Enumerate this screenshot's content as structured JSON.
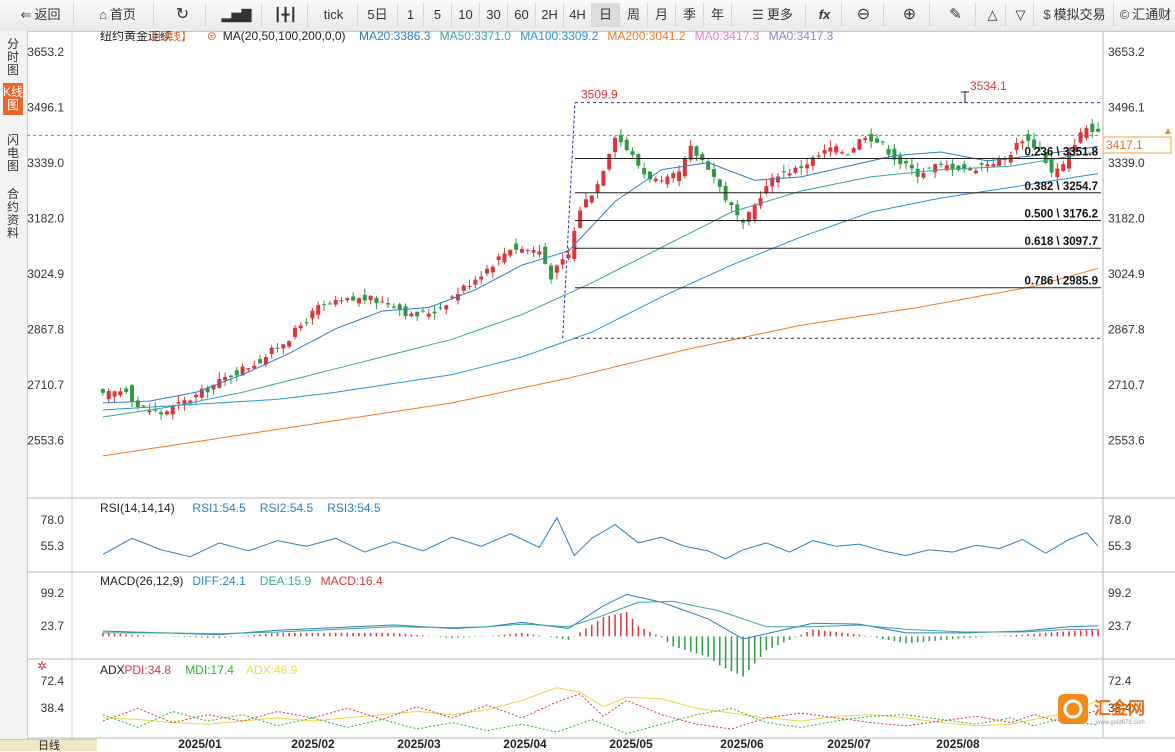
{
  "toolbar": {
    "back": "返回",
    "home": "首页",
    "periods": [
      "tick",
      "5日",
      "1",
      "5",
      "10",
      "30",
      "60",
      "2H",
      "4H",
      "日",
      "周",
      "月",
      "季",
      "年"
    ],
    "selected_period": "日",
    "more": "更多",
    "sim_trade": "模拟交易",
    "brand": "汇通财"
  },
  "sidebar": {
    "tabs": [
      "分时图",
      "K线图",
      "闪电图",
      "合约资料"
    ],
    "selected": "K线图",
    "bottom_tab": "日线"
  },
  "colors": {
    "up": "#d9363e",
    "down": "#2e9a44",
    "ma20": "#2d7fc4",
    "ma50": "#35a8a0",
    "ma100": "#2a94d9",
    "ma200": "#f07b2a",
    "ma_a": "#e77fc4",
    "ma_b": "#8c7fe0",
    "rsi": "#2d7fc4",
    "diff": "#2d7fc4",
    "dea": "#35a8a0",
    "pdi": "#d9363e",
    "mdi": "#2bb52b",
    "adx": "#e8d84a"
  },
  "chart_data": [
    {
      "type": "candlestick",
      "title": "纽约黄金连续",
      "period_tag": "【日线】",
      "ma_header": "MA(20,50,100,200,0,0)",
      "legend": [
        {
          "label": "MA20:3386.3",
          "key": "ma20"
        },
        {
          "label": "MA50:3371.0",
          "key": "ma50"
        },
        {
          "label": "MA100:3309.2",
          "key": "ma100"
        },
        {
          "label": "MA200:3041.2",
          "key": "ma200"
        },
        {
          "label": "MA0:3417.3",
          "key": "ma_a"
        },
        {
          "label": "MA0:3417.3",
          "key": "ma_b"
        }
      ],
      "y_ticks": [
        "3653.2",
        "3496.1",
        "3339.0",
        "3182.0",
        "3024.9",
        "2867.8",
        "2710.7",
        "2553.6"
      ],
      "ylim": [
        2496.6,
        3686.0
      ],
      "x_ticks": [
        "2025/01",
        "2025/02",
        "2025/03",
        "2025/04",
        "2025/05",
        "2025/06",
        "2025/07",
        "2025/08"
      ],
      "last_price": "3417.1",
      "annotations": {
        "high1": "3509.9",
        "high2": "3534.1"
      },
      "fib_levels": [
        {
          "label": "0.236 \\ 3351.8",
          "value": 3351.8
        },
        {
          "label": "0.382 \\ 3254.7",
          "value": 3254.7
        },
        {
          "label": "0.500 \\ 3176.2",
          "value": 3176.2
        },
        {
          "label": "0.618 \\ 3097.7",
          "value": 3097.7
        },
        {
          "label": "0.786 \\ 2985.9",
          "value": 2985.9
        }
      ],
      "fib_extra": [
        3509.9,
        2843.0
      ],
      "current_line": 3417.1,
      "anchors": [
        [
          0,
          2680
        ],
        [
          4,
          2700
        ],
        [
          6,
          2650
        ],
        [
          10,
          2630
        ],
        [
          16,
          2680
        ],
        [
          22,
          2740
        ],
        [
          27,
          2780
        ],
        [
          32,
          2845
        ],
        [
          37,
          2930
        ],
        [
          42,
          2950
        ],
        [
          45,
          2955
        ],
        [
          50,
          2940
        ],
        [
          53,
          2905
        ],
        [
          57,
          2920
        ],
        [
          60,
          2960
        ],
        [
          63,
          3000
        ],
        [
          66,
          3040
        ],
        [
          70,
          3100
        ],
        [
          75,
          3090
        ],
        [
          77,
          3020
        ],
        [
          80,
          3080
        ],
        [
          82,
          3210
        ],
        [
          85,
          3280
        ],
        [
          88,
          3420
        ],
        [
          90,
          3380
        ],
        [
          93,
          3310
        ],
        [
          96,
          3280
        ],
        [
          99,
          3310
        ],
        [
          101,
          3380
        ],
        [
          104,
          3330
        ],
        [
          107,
          3240
        ],
        [
          110,
          3160
        ],
        [
          113,
          3250
        ],
        [
          116,
          3310
        ],
        [
          119,
          3320
        ],
        [
          122,
          3350
        ],
        [
          125,
          3380
        ],
        [
          128,
          3370
        ],
        [
          131,
          3420
        ],
        [
          134,
          3390
        ],
        [
          137,
          3340
        ],
        [
          140,
          3310
        ],
        [
          143,
          3330
        ],
        [
          146,
          3330
        ],
        [
          149,
          3320
        ],
        [
          152,
          3340
        ],
        [
          155,
          3350
        ],
        [
          158,
          3410
        ],
        [
          161,
          3380
        ],
        [
          163,
          3310
        ],
        [
          165,
          3330
        ],
        [
          167,
          3400
        ],
        [
          169,
          3440
        ],
        [
          171,
          3417
        ]
      ],
      "ma_lines": {
        "ma20": [
          [
            0,
            2660
          ],
          [
            8,
            2665
          ],
          [
            16,
            2690
          ],
          [
            24,
            2740
          ],
          [
            32,
            2800
          ],
          [
            40,
            2870
          ],
          [
            48,
            2920
          ],
          [
            56,
            2930
          ],
          [
            64,
            2980
          ],
          [
            72,
            3050
          ],
          [
            80,
            3090
          ],
          [
            88,
            3230
          ],
          [
            96,
            3320
          ],
          [
            104,
            3340
          ],
          [
            112,
            3290
          ],
          [
            120,
            3300
          ],
          [
            128,
            3330
          ],
          [
            136,
            3360
          ],
          [
            144,
            3370
          ],
          [
            152,
            3345
          ],
          [
            160,
            3360
          ],
          [
            171,
            3386
          ]
        ],
        "ma50": [
          [
            0,
            2620
          ],
          [
            12,
            2650
          ],
          [
            24,
            2690
          ],
          [
            36,
            2740
          ],
          [
            48,
            2790
          ],
          [
            60,
            2840
          ],
          [
            72,
            2910
          ],
          [
            84,
            3000
          ],
          [
            96,
            3100
          ],
          [
            108,
            3200
          ],
          [
            120,
            3260
          ],
          [
            132,
            3300
          ],
          [
            144,
            3320
          ],
          [
            156,
            3330
          ],
          [
            171,
            3371
          ]
        ],
        "ma100": [
          [
            0,
            2640
          ],
          [
            10,
            2650
          ],
          [
            20,
            2660
          ],
          [
            30,
            2670
          ],
          [
            40,
            2690
          ],
          [
            50,
            2715
          ],
          [
            60,
            2740
          ],
          [
            72,
            2790
          ],
          [
            84,
            2860
          ],
          [
            96,
            2960
          ],
          [
            108,
            3050
          ],
          [
            120,
            3130
          ],
          [
            132,
            3200
          ],
          [
            144,
            3240
          ],
          [
            156,
            3270
          ],
          [
            171,
            3309
          ]
        ],
        "ma200": [
          [
            0,
            2510
          ],
          [
            20,
            2560
          ],
          [
            40,
            2610
          ],
          [
            60,
            2660
          ],
          [
            80,
            2730
          ],
          [
            100,
            2810
          ],
          [
            120,
            2880
          ],
          [
            140,
            2930
          ],
          [
            160,
            2990
          ],
          [
            171,
            3041
          ]
        ]
      }
    },
    {
      "type": "line",
      "title": "RSI(14,14,14)",
      "legend": [
        {
          "label": "RSI1:54.5",
          "key": "rsi"
        },
        {
          "label": "RSI2:54.5",
          "key": "rsi"
        },
        {
          "label": "RSI3:54.5",
          "key": "rsi"
        }
      ],
      "y_ticks": [
        "78.0",
        "55.3"
      ],
      "ylim": [
        37,
        88
      ],
      "anchors": [
        [
          0,
          48
        ],
        [
          5,
          62
        ],
        [
          10,
          52
        ],
        [
          15,
          46
        ],
        [
          20,
          58
        ],
        [
          25,
          51
        ],
        [
          30,
          60
        ],
        [
          35,
          55
        ],
        [
          40,
          62
        ],
        [
          45,
          50
        ],
        [
          50,
          59
        ],
        [
          55,
          51
        ],
        [
          60,
          63
        ],
        [
          65,
          55
        ],
        [
          70,
          66
        ],
        [
          75,
          54
        ],
        [
          78,
          80
        ],
        [
          81,
          47
        ],
        [
          84,
          62
        ],
        [
          88,
          74
        ],
        [
          92,
          58
        ],
        [
          96,
          63
        ],
        [
          100,
          55
        ],
        [
          104,
          51
        ],
        [
          107,
          44
        ],
        [
          110,
          52
        ],
        [
          114,
          58
        ],
        [
          118,
          50
        ],
        [
          122,
          60
        ],
        [
          126,
          55
        ],
        [
          130,
          57
        ],
        [
          134,
          51
        ],
        [
          138,
          47
        ],
        [
          142,
          52
        ],
        [
          146,
          50
        ],
        [
          150,
          56
        ],
        [
          154,
          53
        ],
        [
          158,
          61
        ],
        [
          162,
          49
        ],
        [
          166,
          61
        ],
        [
          169,
          67
        ],
        [
          171,
          55
        ]
      ]
    },
    {
      "type": "bar+line",
      "title": "MACD(26,12,9)",
      "legend": [
        {
          "label": "DIFF:24.1",
          "key": "diff"
        },
        {
          "label": "DEA:15.9",
          "key": "dea"
        },
        {
          "label": "MACD:16.4",
          "key": "up"
        }
      ],
      "y_ticks": [
        "99.2",
        "23.7"
      ],
      "ylim": [
        -40,
        118
      ],
      "diff": [
        [
          0,
          12
        ],
        [
          10,
          8
        ],
        [
          20,
          4
        ],
        [
          30,
          14
        ],
        [
          40,
          20
        ],
        [
          50,
          26
        ],
        [
          60,
          18
        ],
        [
          66,
          22
        ],
        [
          72,
          32
        ],
        [
          80,
          18
        ],
        [
          86,
          70
        ],
        [
          90,
          96
        ],
        [
          96,
          78
        ],
        [
          104,
          40
        ],
        [
          110,
          -6
        ],
        [
          116,
          12
        ],
        [
          122,
          30
        ],
        [
          130,
          28
        ],
        [
          138,
          8
        ],
        [
          148,
          8
        ],
        [
          158,
          12
        ],
        [
          166,
          22
        ],
        [
          171,
          24
        ]
      ],
      "dea": [
        [
          0,
          8
        ],
        [
          10,
          8
        ],
        [
          20,
          6
        ],
        [
          30,
          10
        ],
        [
          40,
          16
        ],
        [
          50,
          22
        ],
        [
          60,
          20
        ],
        [
          66,
          22
        ],
        [
          72,
          28
        ],
        [
          80,
          22
        ],
        [
          86,
          48
        ],
        [
          92,
          78
        ],
        [
          98,
          80
        ],
        [
          106,
          58
        ],
        [
          114,
          22
        ],
        [
          122,
          22
        ],
        [
          130,
          26
        ],
        [
          138,
          16
        ],
        [
          148,
          10
        ],
        [
          158,
          10
        ],
        [
          166,
          16
        ],
        [
          171,
          16
        ]
      ]
    },
    {
      "type": "line",
      "title": "ADX",
      "legend": [
        {
          "label": "PDI:34.8",
          "key": "pdi"
        },
        {
          "label": "MDI:17.4",
          "key": "mdi"
        },
        {
          "label": "ADX:46.9",
          "key": "adx"
        }
      ],
      "y_ticks": [
        "72.4",
        "38.4"
      ],
      "ylim": [
        0,
        90
      ],
      "pdi": [
        [
          0,
          22
        ],
        [
          6,
          38
        ],
        [
          12,
          20
        ],
        [
          18,
          30
        ],
        [
          24,
          22
        ],
        [
          30,
          34
        ],
        [
          36,
          26
        ],
        [
          42,
          38
        ],
        [
          48,
          24
        ],
        [
          54,
          40
        ],
        [
          60,
          26
        ],
        [
          66,
          42
        ],
        [
          72,
          26
        ],
        [
          78,
          46
        ],
        [
          82,
          56
        ],
        [
          86,
          28
        ],
        [
          90,
          48
        ],
        [
          96,
          30
        ],
        [
          102,
          18
        ],
        [
          108,
          12
        ],
        [
          114,
          26
        ],
        [
          120,
          32
        ],
        [
          126,
          26
        ],
        [
          132,
          20
        ],
        [
          138,
          16
        ],
        [
          144,
          22
        ],
        [
          150,
          28
        ],
        [
          156,
          20
        ],
        [
          160,
          30
        ],
        [
          164,
          22
        ],
        [
          168,
          30
        ],
        [
          171,
          35
        ]
      ],
      "mdi": [
        [
          0,
          30
        ],
        [
          6,
          14
        ],
        [
          12,
          34
        ],
        [
          18,
          22
        ],
        [
          24,
          30
        ],
        [
          30,
          16
        ],
        [
          36,
          26
        ],
        [
          42,
          14
        ],
        [
          48,
          24
        ],
        [
          54,
          12
        ],
        [
          60,
          20
        ],
        [
          66,
          10
        ],
        [
          72,
          18
        ],
        [
          78,
          8
        ],
        [
          84,
          24
        ],
        [
          90,
          6
        ],
        [
          96,
          18
        ],
        [
          102,
          30
        ],
        [
          108,
          38
        ],
        [
          114,
          20
        ],
        [
          120,
          14
        ],
        [
          126,
          22
        ],
        [
          132,
          28
        ],
        [
          138,
          30
        ],
        [
          144,
          24
        ],
        [
          150,
          18
        ],
        [
          156,
          26
        ],
        [
          160,
          16
        ],
        [
          164,
          24
        ],
        [
          168,
          20
        ],
        [
          171,
          17
        ]
      ],
      "adx": [
        [
          0,
          26
        ],
        [
          6,
          24
        ],
        [
          12,
          20
        ],
        [
          18,
          18
        ],
        [
          24,
          22
        ],
        [
          30,
          26
        ],
        [
          36,
          22
        ],
        [
          42,
          26
        ],
        [
          48,
          30
        ],
        [
          54,
          34
        ],
        [
          60,
          30
        ],
        [
          66,
          36
        ],
        [
          72,
          48
        ],
        [
          78,
          64
        ],
        [
          82,
          58
        ],
        [
          86,
          40
        ],
        [
          90,
          52
        ],
        [
          96,
          50
        ],
        [
          102,
          38
        ],
        [
          108,
          32
        ],
        [
          114,
          26
        ],
        [
          120,
          22
        ],
        [
          126,
          28
        ],
        [
          132,
          30
        ],
        [
          138,
          26
        ],
        [
          144,
          20
        ],
        [
          150,
          16
        ],
        [
          156,
          18
        ],
        [
          160,
          24
        ],
        [
          164,
          30
        ],
        [
          168,
          40
        ],
        [
          171,
          47
        ]
      ]
    }
  ]
}
